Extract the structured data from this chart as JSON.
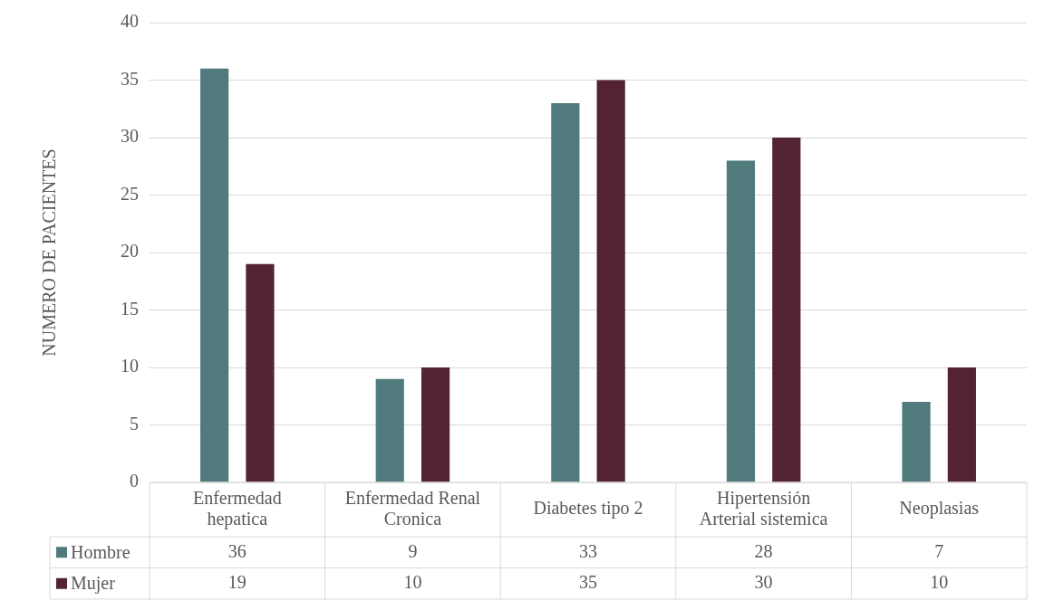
{
  "chart_data": {
    "type": "bar",
    "ylabel": "NUMERO DE PACIENTES",
    "categories": [
      "Enfermedad hepatica",
      "Enfermedad Renal Cronica",
      "Diabetes tipo 2",
      "Hipertensión Arterial sistemica",
      "Neoplasias"
    ],
    "series": [
      {
        "name": "Hombre",
        "color": "#517a7c",
        "values": [
          36,
          9,
          33,
          28,
          7
        ]
      },
      {
        "name": "Mujer",
        "color": "#532335",
        "values": [
          19,
          10,
          35,
          30,
          10
        ]
      }
    ],
    "ylim": [
      0,
      40
    ],
    "yticks": [
      0,
      5,
      10,
      15,
      20,
      25,
      30,
      35,
      40
    ],
    "grid": "y",
    "legend": "bottom",
    "data_labels": true
  }
}
